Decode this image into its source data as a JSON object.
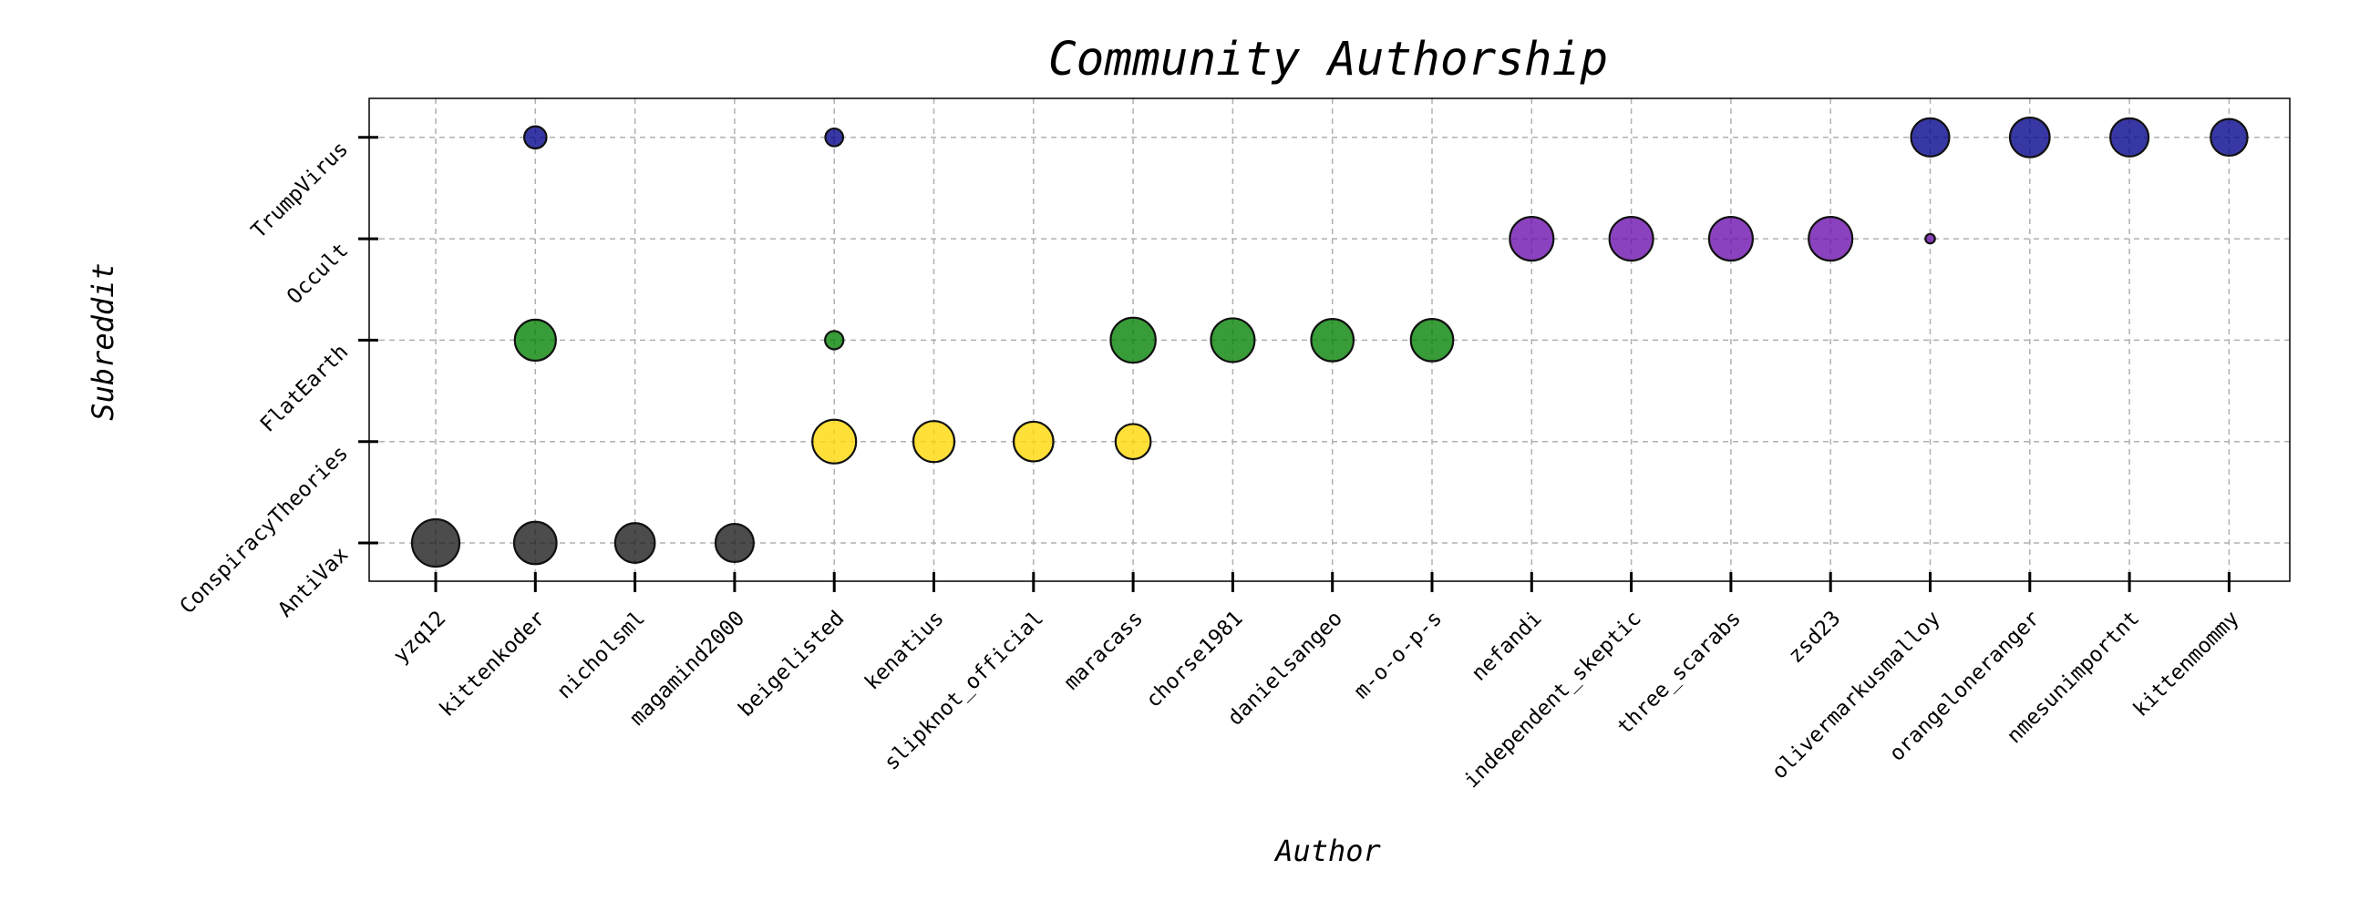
{
  "chart_data": {
    "type": "scatter",
    "title": "Community Authorship",
    "xlabel": "Author",
    "ylabel": "Subreddit",
    "categories_x": [
      "yzq12",
      "kittenkoder",
      "nicholsml",
      "magamind2000",
      "beigelisted",
      "kenatius",
      "slipknot_official",
      "maracass",
      "chorse1981",
      "danielsangeo",
      "m-o-o-p-s",
      "nefandi",
      "independent_skeptic",
      "three_scarabs",
      "zsd23",
      "olivermarkusmalloy",
      "orangeloneranger",
      "nmesunimportnt",
      "kittenmommy"
    ],
    "categories_y": [
      "AntiVax",
      "ConspiracyTheories",
      "FlatEarth",
      "Occult",
      "TrumpVirus"
    ],
    "grid": true,
    "legend": "none",
    "series": [
      {
        "subreddit": "AntiVax",
        "color": "#1a1a1a",
        "points": [
          {
            "author": "yzq12",
            "size": 100
          },
          {
            "author": "kittenkoder",
            "size": 80
          },
          {
            "author": "nicholsml",
            "size": 70
          },
          {
            "author": "magamind2000",
            "size": 65
          }
        ]
      },
      {
        "subreddit": "ConspiracyTheories",
        "color": "#ffd700",
        "points": [
          {
            "author": "beigelisted",
            "size": 85
          },
          {
            "author": "kenatius",
            "size": 75
          },
          {
            "author": "slipknot_official",
            "size": 70
          },
          {
            "author": "maracass",
            "size": 55
          }
        ]
      },
      {
        "subreddit": "FlatEarth",
        "color": "#008000",
        "points": [
          {
            "author": "kittenkoder",
            "size": 75
          },
          {
            "author": "beigelisted",
            "size": 15
          },
          {
            "author": "maracass",
            "size": 90
          },
          {
            "author": "chorse1981",
            "size": 85
          },
          {
            "author": "danielsangeo",
            "size": 80
          },
          {
            "author": "m-o-o-p-s",
            "size": 80
          }
        ]
      },
      {
        "subreddit": "Occult",
        "color": "#6a0dad",
        "points": [
          {
            "author": "nefandi",
            "size": 85
          },
          {
            "author": "independent_skeptic",
            "size": 85
          },
          {
            "author": "three_scarabs",
            "size": 85
          },
          {
            "author": "zsd23",
            "size": 85
          },
          {
            "author": "olivermarkusmalloy",
            "size": 4
          }
        ]
      },
      {
        "subreddit": "TrumpVirus",
        "color": "#00008b",
        "points": [
          {
            "author": "kittenkoder",
            "size": 22
          },
          {
            "author": "beigelisted",
            "size": 14
          },
          {
            "author": "olivermarkusmalloy",
            "size": 65
          },
          {
            "author": "orangeloneranger",
            "size": 70
          },
          {
            "author": "nmesunimportnt",
            "size": 65
          },
          {
            "author": "kittenmommy",
            "size": 60
          }
        ]
      }
    ]
  }
}
